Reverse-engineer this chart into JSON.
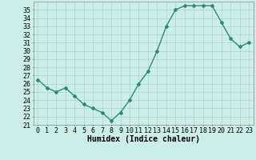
{
  "title": "",
  "xlabel": "Humidex (Indice chaleur)",
  "ylabel": "",
  "x": [
    0,
    1,
    2,
    3,
    4,
    5,
    6,
    7,
    8,
    9,
    10,
    11,
    12,
    13,
    14,
    15,
    16,
    17,
    18,
    19,
    20,
    21,
    22,
    23
  ],
  "y": [
    26.5,
    25.5,
    25.0,
    25.5,
    24.5,
    23.5,
    23.0,
    22.5,
    21.5,
    22.5,
    24.0,
    26.0,
    27.5,
    30.0,
    33.0,
    35.0,
    35.5,
    35.5,
    35.5,
    35.5,
    33.5,
    31.5,
    30.5,
    31.0
  ],
  "ylim": [
    21,
    36
  ],
  "xlim": [
    -0.5,
    23.5
  ],
  "yticks": [
    21,
    22,
    23,
    24,
    25,
    26,
    27,
    28,
    29,
    30,
    31,
    32,
    33,
    34,
    35
  ],
  "xticks": [
    0,
    1,
    2,
    3,
    4,
    5,
    6,
    7,
    8,
    9,
    10,
    11,
    12,
    13,
    14,
    15,
    16,
    17,
    18,
    19,
    20,
    21,
    22,
    23
  ],
  "line_color": "#2e8b72",
  "marker": "D",
  "marker_size": 2.0,
  "bg_color": "#cceee8",
  "grid_color": "#aad4cc",
  "tick_fontsize": 6,
  "label_fontsize": 7,
  "line_width": 1.0
}
